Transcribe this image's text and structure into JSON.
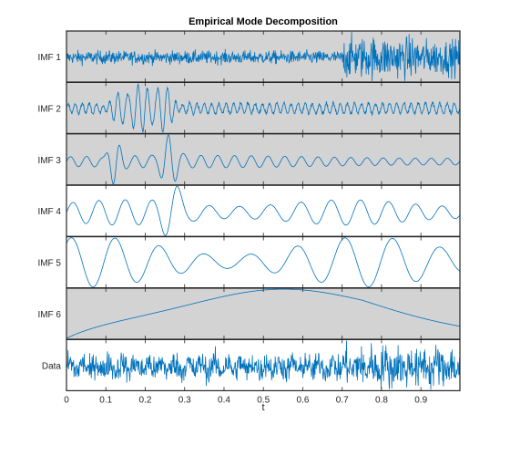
{
  "chart_data": {
    "type": "line",
    "title": "Empirical Mode Decomposition",
    "xlabel": "t",
    "xlim": [
      0,
      0.999
    ],
    "x_ticks": [
      "0",
      "0.1",
      "0.2",
      "0.3",
      "0.4",
      "0.5",
      "0.6",
      "0.7",
      "0.8",
      "0.9"
    ],
    "line_color": "#0072BD",
    "highlight_color": "#D3D3D3",
    "panels": [
      {
        "name": "IMF 1",
        "highlighted": true
      },
      {
        "name": "IMF 2",
        "highlighted": true
      },
      {
        "name": "IMF 3",
        "highlighted": true
      },
      {
        "name": "IMF 4",
        "highlighted": false
      },
      {
        "name": "IMF 5",
        "highlighted": false
      },
      {
        "name": "IMF 6",
        "highlighted": true
      },
      {
        "name": "Data",
        "highlighted": false
      }
    ]
  }
}
